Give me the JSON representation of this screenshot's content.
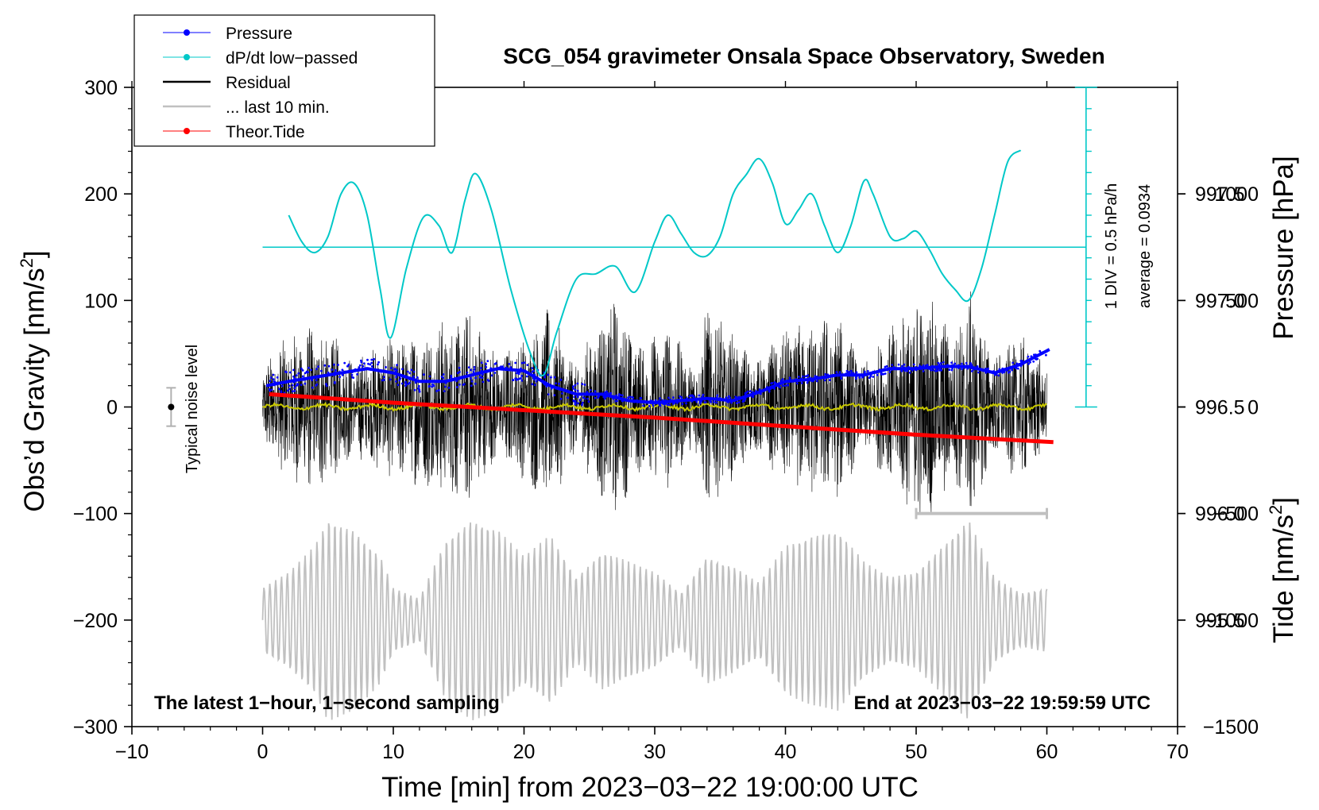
{
  "chart_data": {
    "type": "line",
    "title": "SCG_054 gravimeter Onsala Space Observatory, Sweden",
    "xlabel": "Time [min] from 2023−03−22 19:00:00 UTC",
    "ylabel_left": "Obs’d Gravity [nm/s",
    "ylabel_left_sup": "2",
    "ylabel_left_close": "]",
    "ylabel_right_top": "Pressure [hPa]",
    "ylabel_right_bottom": "Tide [nm/s",
    "ylabel_right_bottom_sup": "2",
    "ylabel_right_bottom_close": "]",
    "xlim": [
      -10,
      70
    ],
    "ylim_left": [
      -300,
      300
    ],
    "ylim_pressure": [
      995.0,
      998.0
    ],
    "ylim_tide": [
      -1500,
      1500
    ],
    "x_ticks": [
      {
        "value": -10,
        "label": "−10"
      },
      {
        "value": 0,
        "label": "0"
      },
      {
        "value": 10,
        "label": "10"
      },
      {
        "value": 20,
        "label": "20"
      },
      {
        "value": 30,
        "label": "30"
      },
      {
        "value": 40,
        "label": "40"
      },
      {
        "value": 50,
        "label": "50"
      },
      {
        "value": 60,
        "label": "60"
      },
      {
        "value": 70,
        "label": "70"
      }
    ],
    "y_ticks_left": [
      {
        "value": 300,
        "label": "300"
      },
      {
        "value": 200,
        "label": "200"
      },
      {
        "value": 100,
        "label": "100"
      },
      {
        "value": 0,
        "label": "0"
      },
      {
        "value": -100,
        "label": "−100"
      },
      {
        "value": -200,
        "label": "−200"
      },
      {
        "value": -300,
        "label": "−300"
      }
    ],
    "y_ticks_pressure": [
      {
        "value": 997.5,
        "label": "997.5"
      },
      {
        "value": 997.0,
        "label": "997.0"
      },
      {
        "value": 996.5,
        "label": "996.5"
      },
      {
        "value": 996.0,
        "label": "996.0"
      },
      {
        "value": 995.5,
        "label": "995.5"
      }
    ],
    "y_ticks_tide": [
      {
        "value": 1000,
        "label": "1000"
      },
      {
        "value": 500,
        "label": "500"
      },
      {
        "value": 0,
        "label": "0"
      },
      {
        "value": -500,
        "label": "−500"
      },
      {
        "value": -1000,
        "label": "−1000"
      },
      {
        "value": -1500,
        "label": "−1500"
      }
    ],
    "legend": {
      "position": "top-left",
      "entries": [
        {
          "label": "Pressure",
          "color": "#0000ff",
          "marker": true
        },
        {
          "label": "dP/dt low−passed",
          "color": "#00c8c8",
          "marker": true
        },
        {
          "label": "Residual",
          "color": "#000000",
          "marker": false
        },
        {
          "label": "... last 10 min.",
          "color": "#c0c0c0",
          "marker": false
        },
        {
          "label": "Theor.Tide",
          "color": "#ff0000",
          "marker": true
        }
      ]
    },
    "annotations": {
      "bottom_left": "The latest 1−hour, 1−second sampling",
      "bottom_right": "End at 2023−03−22 19:59:59 UTC",
      "noise_label": "Typical noise level",
      "dpdt_scale": "1 DIV = 0.5 hPa/h",
      "dpdt_average": "average = 0.0934"
    },
    "noise_bar": {
      "x": -7,
      "center": 0,
      "half_range": 18
    },
    "last10_bar": {
      "x_start": 50,
      "x_end": 60,
      "y": -100
    },
    "dpdt_scale_axis": {
      "x": 63,
      "y_bottom": 0,
      "y_top": 300,
      "divisions": 15,
      "baseline_y": 150
    },
    "series": [
      {
        "name": "Pressure",
        "axis": "pressure",
        "color": "#0000ff",
        "x": [
          0.3,
          2,
          4,
          6,
          8,
          10,
          12,
          14,
          16,
          18,
          20,
          22,
          24,
          26,
          28,
          30,
          32,
          34,
          36,
          38,
          40,
          42,
          44,
          46,
          48,
          50,
          52,
          54,
          56,
          58,
          60.2
        ],
        "y": [
          996.6,
          996.62,
          996.64,
          996.66,
          996.68,
          996.66,
          996.62,
          996.62,
          996.65,
          996.68,
          996.67,
          996.6,
          996.56,
          996.56,
          996.53,
          996.52,
          996.53,
          996.54,
          996.53,
          996.57,
          996.62,
          996.63,
          996.65,
          996.65,
          996.68,
          996.68,
          996.69,
          996.69,
          996.66,
          996.7,
          996.77
        ]
      },
      {
        "name": "dP/dt low-passed",
        "axis": "left",
        "color": "#00c8c8",
        "x": [
          2,
          3,
          4,
          5,
          6,
          7,
          8,
          9,
          9.8,
          11,
          12.3,
          13.5,
          14.5,
          15.5,
          16.3,
          17.5,
          19,
          20.5,
          21.5,
          22.5,
          24,
          25.5,
          27,
          28.5,
          30,
          31,
          32,
          33,
          34,
          35,
          36,
          37,
          38,
          39,
          40,
          41,
          42,
          43,
          44,
          45,
          46,
          46.7,
          48,
          49,
          50,
          51,
          52,
          53,
          54,
          55,
          56,
          57,
          58
        ],
        "y": [
          180,
          155,
          145,
          160,
          200,
          210,
          180,
          110,
          65,
          130,
          178,
          170,
          145,
          195,
          219,
          185,
          110,
          50,
          30,
          70,
          120,
          125,
          132,
          108,
          155,
          180,
          163,
          145,
          142,
          160,
          200,
          218,
          233,
          210,
          172,
          185,
          200,
          170,
          145,
          170,
          212,
          200,
          160,
          158,
          165,
          148,
          125,
          110,
          100,
          130,
          180,
          230,
          241
        ]
      },
      {
        "name": "Theor.Tide",
        "axis": "tide",
        "color": "#ff0000",
        "x": [
          0.5,
          10,
          20,
          30,
          40,
          50,
          60.5
        ],
        "y": [
          60,
          20,
          -15,
          -50,
          -90,
          -130,
          -165
        ]
      }
    ],
    "residual_envelope": {
      "x": [
        0,
        2,
        4,
        5,
        7,
        9,
        11,
        14,
        16,
        18,
        20,
        22,
        24,
        26,
        27,
        29,
        31,
        33,
        34,
        36,
        38,
        40,
        42,
        44,
        46,
        48,
        50,
        51,
        53,
        54,
        56,
        58,
        60
      ],
      "amplitude": [
        40,
        70,
        80,
        75,
        45,
        65,
        70,
        85,
        95,
        50,
        70,
        95,
        40,
        95,
        105,
        60,
        80,
        40,
        100,
        70,
        45,
        75,
        85,
        90,
        40,
        75,
        110,
        105,
        70,
        115,
        50,
        70,
        40
      ]
    },
    "gray_envelope": {
      "x": [
        0,
        2,
        4,
        5,
        7,
        9,
        10,
        12,
        14,
        16,
        18,
        20,
        22,
        24,
        26,
        28,
        30,
        32,
        34,
        36,
        38,
        40,
        42,
        44,
        46,
        48,
        50,
        52,
        54,
        56,
        58,
        60
      ],
      "amplitude": [
        30,
        45,
        70,
        95,
        85,
        60,
        30,
        20,
        75,
        95,
        85,
        60,
        80,
        40,
        65,
        55,
        45,
        25,
        60,
        50,
        35,
        70,
        80,
        85,
        55,
        40,
        45,
        70,
        95,
        40,
        25,
        30
      ],
      "center": -200
    }
  }
}
